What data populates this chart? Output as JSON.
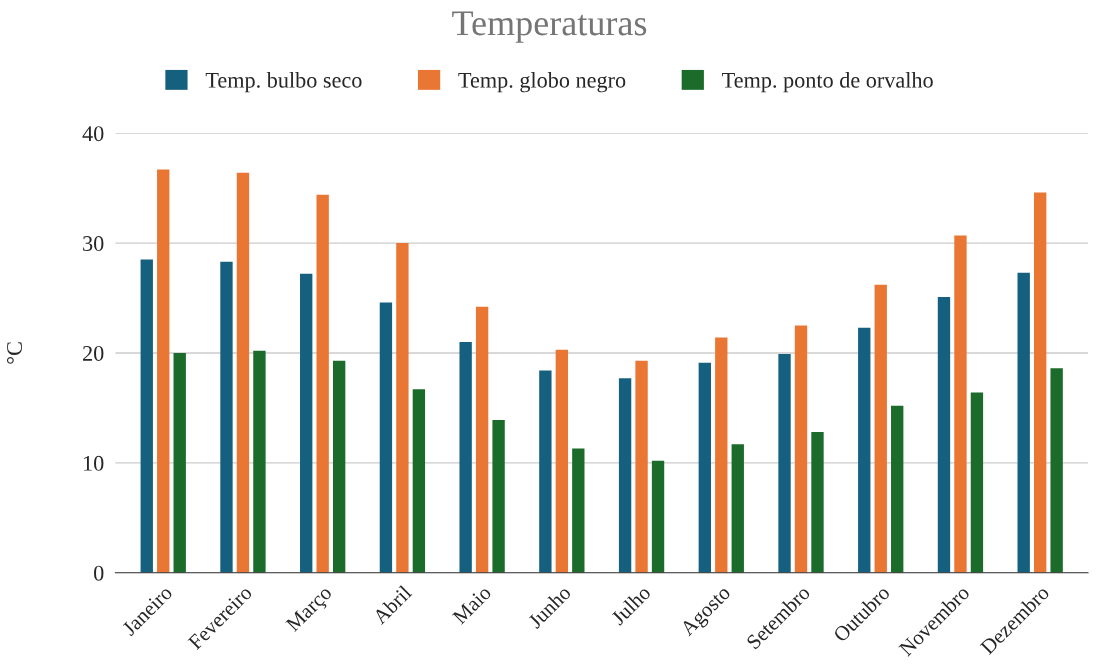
{
  "chart_data": {
    "type": "bar",
    "title": "Temperaturas",
    "ylabel": "°C",
    "categories": [
      "Janeiro",
      "Fevereiro",
      "Março",
      "Abril",
      "Maio",
      "Junho",
      "Julho",
      "Agosto",
      "Setembro",
      "Outubro",
      "Novembro",
      "Dezembro"
    ],
    "series": [
      {
        "name": "Temp. bulbo seco",
        "color": "#16607f",
        "values": [
          28.5,
          28.3,
          27.2,
          24.6,
          21.0,
          18.4,
          17.7,
          19.1,
          19.9,
          22.3,
          25.1,
          27.3
        ]
      },
      {
        "name": "Temp. globo negro",
        "color": "#ea7634",
        "values": [
          36.7,
          36.4,
          34.4,
          30.0,
          24.2,
          20.3,
          19.3,
          21.4,
          22.5,
          26.2,
          30.7,
          34.6
        ]
      },
      {
        "name": "Temp. ponto de orvalho",
        "color": "#1b6b2a",
        "values": [
          20.0,
          20.2,
          19.3,
          16.7,
          13.9,
          11.3,
          10.2,
          11.7,
          12.8,
          15.2,
          16.4,
          18.6
        ]
      }
    ],
    "ylim": [
      0,
      40
    ],
    "yticks": [
      0,
      10,
      20,
      30,
      40
    ],
    "grid": "y",
    "legend": "top"
  }
}
